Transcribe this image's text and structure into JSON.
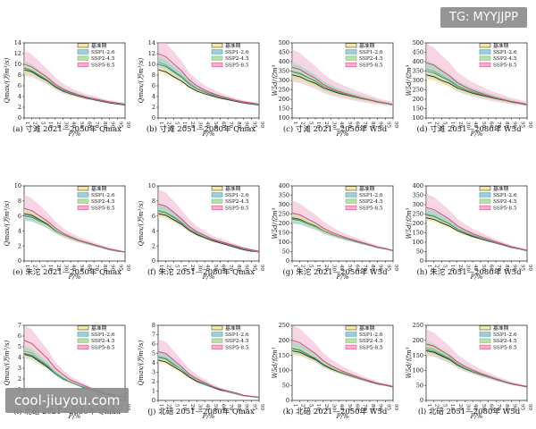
{
  "watermarks": {
    "top_right": "TG: MYYJJPP",
    "bottom_left": "cool-jiuyou.com"
  },
  "legend": [
    "基准期",
    "SSP1-2.6",
    "SSP2-4.5",
    "SSP5-8.5"
  ],
  "colors": {
    "基准期": "#222222",
    "SSP1-2.6": "#2b8a8a",
    "SSP2-4.5": "#6fae6f",
    "SSP5-8.5": "#d83a7a",
    "band_base": "#f4ea9a",
    "band_126": "#9fd0d8",
    "band_245": "#b9e0a8",
    "band_585": "#f3b3cf"
  },
  "x_label": "P/%",
  "x_ticks": [
    "1",
    "2",
    "5",
    "10",
    "20",
    "30",
    "40",
    "50",
    "60",
    "70",
    "80",
    "90",
    "95",
    "99"
  ],
  "chart_data": [
    {
      "type": "area",
      "caption": "(a) 寸滩 2021—2050年 Qmax",
      "ylabel": "Qmax/(万m³/s)",
      "ylim": [
        0,
        14
      ],
      "yticks": [
        0,
        2,
        4,
        6,
        8,
        10,
        12,
        14
      ],
      "series": [
        {
          "name": "基准期",
          "values": [
            9.0,
            8.6,
            7.7,
            6.9,
            5.8,
            5.0,
            4.5,
            4.1,
            3.7,
            3.4,
            3.1,
            2.8,
            2.6,
            2.4
          ]
        },
        {
          "name": "SSP1-2.6",
          "values": [
            9.3,
            8.8,
            7.9,
            7.0,
            5.9,
            5.1,
            4.6,
            4.2,
            3.8,
            3.5,
            3.2,
            2.9,
            2.7,
            2.5
          ]
        },
        {
          "name": "SSP2-4.5",
          "values": [
            9.4,
            8.9,
            8.0,
            7.1,
            6.0,
            5.2,
            4.7,
            4.2,
            3.8,
            3.5,
            3.2,
            2.9,
            2.7,
            2.5
          ]
        },
        {
          "name": "SSP5-8.5",
          "values": [
            10.0,
            9.5,
            8.5,
            7.5,
            6.3,
            5.4,
            4.8,
            4.3,
            3.9,
            3.6,
            3.3,
            3.0,
            2.8,
            2.6
          ]
        }
      ]
    },
    {
      "type": "area",
      "caption": "(b) 寸滩 2051—2080年 Qmax",
      "ylabel": "Qmax/(万m³/s)",
      "ylim": [
        0,
        14
      ],
      "yticks": [
        0,
        2,
        4,
        6,
        8,
        10,
        12,
        14
      ],
      "series": [
        {
          "name": "基准期",
          "values": [
            9.0,
            8.6,
            7.7,
            6.9,
            5.8,
            5.0,
            4.5,
            4.1,
            3.7,
            3.4,
            3.1,
            2.8,
            2.6,
            2.4
          ]
        },
        {
          "name": "SSP1-2.6",
          "values": [
            10.0,
            9.6,
            8.6,
            7.6,
            6.3,
            5.4,
            4.8,
            4.3,
            3.9,
            3.5,
            3.2,
            2.9,
            2.7,
            2.5
          ]
        },
        {
          "name": "SSP2-4.5",
          "values": [
            10.4,
            9.9,
            8.8,
            7.8,
            6.5,
            5.5,
            4.9,
            4.4,
            3.9,
            3.6,
            3.2,
            2.9,
            2.7,
            2.5
          ]
        },
        {
          "name": "SSP5-8.5",
          "values": [
            12.0,
            11.4,
            10.1,
            8.8,
            7.1,
            6.0,
            5.2,
            4.6,
            4.1,
            3.7,
            3.3,
            3.0,
            2.8,
            2.6
          ]
        }
      ]
    },
    {
      "type": "area",
      "caption": "(c) 寸滩 2021—2050年 W5d",
      "ylabel": "W5d/亿m³",
      "ylim": [
        100,
        500
      ],
      "yticks": [
        100,
        150,
        200,
        250,
        300,
        350,
        400,
        450,
        500
      ],
      "series": [
        {
          "name": "基准期",
          "values": [
            330,
            320,
            300,
            285,
            260,
            245,
            232,
            222,
            212,
            203,
            195,
            185,
            178,
            170
          ]
        },
        {
          "name": "SSP1-2.6",
          "values": [
            345,
            335,
            315,
            295,
            268,
            250,
            236,
            225,
            214,
            205,
            196,
            186,
            179,
            171
          ]
        },
        {
          "name": "SSP2-4.5",
          "values": [
            350,
            340,
            318,
            298,
            270,
            252,
            238,
            226,
            215,
            205,
            196,
            186,
            179,
            171
          ]
        },
        {
          "name": "SSP5-8.5",
          "values": [
            370,
            358,
            333,
            310,
            279,
            258,
            243,
            230,
            218,
            207,
            197,
            187,
            180,
            172
          ]
        }
      ]
    },
    {
      "type": "area",
      "caption": "(d) 寸滩 2051—2080年 W5d",
      "ylabel": "W5d/亿m³",
      "ylim": [
        100,
        500
      ],
      "yticks": [
        100,
        150,
        200,
        250,
        300,
        350,
        400,
        450,
        500
      ],
      "series": [
        {
          "name": "基准期",
          "values": [
            330,
            320,
            300,
            285,
            260,
            245,
            232,
            222,
            212,
            203,
            195,
            185,
            178,
            170
          ]
        },
        {
          "name": "SSP1-2.6",
          "values": [
            350,
            340,
            318,
            298,
            270,
            252,
            238,
            226,
            215,
            205,
            196,
            186,
            179,
            171
          ]
        },
        {
          "name": "SSP2-4.5",
          "values": [
            360,
            349,
            326,
            304,
            274,
            255,
            240,
            228,
            216,
            206,
            197,
            187,
            180,
            172
          ]
        },
        {
          "name": "SSP5-8.5",
          "values": [
            395,
            382,
            352,
            325,
            288,
            265,
            247,
            233,
            220,
            208,
            198,
            188,
            181,
            173
          ]
        }
      ]
    },
    {
      "type": "area",
      "caption": "(e) 朱沱 2021—2050年 Qmax",
      "ylabel": "Qmax/(万m³/s)",
      "ylim": [
        0,
        10
      ],
      "yticks": [
        0,
        2,
        4,
        6,
        8,
        10
      ],
      "series": [
        {
          "name": "基准期",
          "values": [
            6.3,
            6.1,
            5.5,
            4.9,
            4.1,
            3.5,
            3.1,
            2.7,
            2.4,
            2.1,
            1.8,
            1.5,
            1.3,
            1.2
          ]
        },
        {
          "name": "SSP1-2.6",
          "values": [
            6.0,
            5.8,
            5.3,
            4.8,
            4.0,
            3.5,
            3.1,
            2.7,
            2.4,
            2.1,
            1.8,
            1.5,
            1.3,
            1.2
          ]
        },
        {
          "name": "SSP2-4.5",
          "values": [
            6.1,
            5.9,
            5.4,
            4.8,
            4.1,
            3.5,
            3.1,
            2.7,
            2.4,
            2.1,
            1.8,
            1.5,
            1.3,
            1.2
          ]
        },
        {
          "name": "SSP5-8.5",
          "values": [
            7.0,
            6.7,
            6.0,
            5.3,
            4.4,
            3.7,
            3.2,
            2.8,
            2.5,
            2.2,
            1.9,
            1.6,
            1.4,
            1.2
          ]
        }
      ]
    },
    {
      "type": "area",
      "caption": "(f) 朱沱 2051—2080年 Qmax",
      "ylabel": "Qmax/(万m³/s)",
      "ylim": [
        0,
        10
      ],
      "yticks": [
        0,
        2,
        4,
        6,
        8,
        10
      ],
      "series": [
        {
          "name": "基准期",
          "values": [
            6.3,
            6.1,
            5.5,
            4.9,
            4.1,
            3.5,
            3.1,
            2.7,
            2.4,
            2.1,
            1.8,
            1.5,
            1.3,
            1.2
          ]
        },
        {
          "name": "SSP1-2.6",
          "values": [
            6.6,
            6.4,
            5.8,
            5.1,
            4.3,
            3.6,
            3.2,
            2.8,
            2.5,
            2.2,
            1.9,
            1.6,
            1.4,
            1.2
          ]
        },
        {
          "name": "SSP2-4.5",
          "values": [
            6.8,
            6.5,
            5.9,
            5.2,
            4.3,
            3.7,
            3.2,
            2.8,
            2.5,
            2.2,
            1.9,
            1.6,
            1.4,
            1.2
          ]
        },
        {
          "name": "SSP5-8.5",
          "values": [
            7.6,
            7.3,
            6.5,
            5.6,
            4.6,
            3.9,
            3.4,
            2.9,
            2.6,
            2.3,
            2.0,
            1.7,
            1.5,
            1.3
          ]
        }
      ]
    },
    {
      "type": "area",
      "caption": "(g) 朱沱 2021—2050年 W5d",
      "ylabel": "W5d/亿m³",
      "ylim": [
        0,
        400
      ],
      "yticks": [
        0,
        50,
        100,
        150,
        200,
        250,
        300,
        350,
        400
      ],
      "series": [
        {
          "name": "基准期",
          "values": [
            230,
            222,
            203,
            186,
            162,
            145,
            130,
            118,
            106,
            95,
            84,
            72,
            64,
            55
          ]
        },
        {
          "name": "SSP1-2.6",
          "values": [
            222,
            215,
            198,
            182,
            160,
            143,
            129,
            117,
            105,
            94,
            83,
            72,
            64,
            55
          ]
        },
        {
          "name": "SSP2-4.5",
          "values": [
            226,
            219,
            201,
            184,
            161,
            144,
            130,
            118,
            106,
            95,
            84,
            72,
            64,
            55
          ]
        },
        {
          "name": "SSP5-8.5",
          "values": [
            255,
            246,
            224,
            203,
            175,
            155,
            138,
            124,
            111,
            99,
            87,
            75,
            66,
            56
          ]
        }
      ]
    },
    {
      "type": "area",
      "caption": "(h) 朱沱 2051—2080年 W5d",
      "ylabel": "W5d/亿m³",
      "ylim": [
        0,
        400
      ],
      "yticks": [
        0,
        50,
        100,
        150,
        200,
        250,
        300,
        350,
        400
      ],
      "series": [
        {
          "name": "基准期",
          "values": [
            230,
            222,
            203,
            186,
            162,
            145,
            130,
            118,
            106,
            95,
            84,
            72,
            64,
            55
          ]
        },
        {
          "name": "SSP1-2.6",
          "values": [
            245,
            237,
            216,
            197,
            170,
            151,
            135,
            122,
            109,
            97,
            86,
            74,
            65,
            56
          ]
        },
        {
          "name": "SSP2-4.5",
          "values": [
            250,
            241,
            220,
            200,
            172,
            153,
            137,
            123,
            110,
            98,
            86,
            74,
            65,
            56
          ]
        },
        {
          "name": "SSP5-8.5",
          "values": [
            285,
            274,
            248,
            222,
            188,
            165,
            146,
            130,
            116,
            102,
            89,
            76,
            67,
            57
          ]
        }
      ]
    },
    {
      "type": "area",
      "caption": "(i) 北碚 2021—2050年 Qmax",
      "ylabel": "Qmax/(万m³/s)",
      "ylim": [
        0,
        7
      ],
      "yticks": [
        0,
        1,
        2,
        3,
        4,
        5,
        6,
        7
      ],
      "series": [
        {
          "name": "基准期",
          "values": [
            4.3,
            4.1,
            3.6,
            3.1,
            2.5,
            2.0,
            1.7,
            1.4,
            1.1,
            0.9,
            0.7,
            0.5,
            0.4,
            0.3
          ]
        },
        {
          "name": "SSP1-2.6",
          "values": [
            4.4,
            4.2,
            3.7,
            3.2,
            2.5,
            2.0,
            1.7,
            1.4,
            1.1,
            0.9,
            0.7,
            0.5,
            0.4,
            0.3
          ]
        },
        {
          "name": "SSP2-4.5",
          "values": [
            4.6,
            4.4,
            3.8,
            3.3,
            2.6,
            2.1,
            1.7,
            1.4,
            1.2,
            0.9,
            0.7,
            0.5,
            0.4,
            0.3
          ]
        },
        {
          "name": "SSP5-8.5",
          "values": [
            5.6,
            5.3,
            4.6,
            3.9,
            3.0,
            2.4,
            1.9,
            1.6,
            1.3,
            1.0,
            0.8,
            0.6,
            0.45,
            0.35
          ]
        }
      ]
    },
    {
      "type": "area",
      "caption": "(j) 北碚 2051—2080年 Qmax",
      "ylabel": "Qmax/(万m³/s)",
      "ylim": [
        0,
        8
      ],
      "yticks": [
        0,
        1,
        2,
        3,
        4,
        5,
        6,
        7,
        8
      ],
      "series": [
        {
          "name": "基准期",
          "values": [
            4.3,
            4.1,
            3.6,
            3.1,
            2.5,
            2.0,
            1.7,
            1.4,
            1.1,
            0.9,
            0.7,
            0.5,
            0.4,
            0.3
          ]
        },
        {
          "name": "SSP1-2.6",
          "values": [
            4.6,
            4.4,
            3.8,
            3.3,
            2.6,
            2.1,
            1.7,
            1.4,
            1.2,
            0.9,
            0.7,
            0.5,
            0.4,
            0.3
          ]
        },
        {
          "name": "SSP2-4.5",
          "values": [
            4.7,
            4.5,
            3.9,
            3.3,
            2.6,
            2.1,
            1.8,
            1.5,
            1.2,
            0.9,
            0.7,
            0.5,
            0.4,
            0.3
          ]
        },
        {
          "name": "SSP5-8.5",
          "values": [
            5.2,
            5.0,
            4.3,
            3.6,
            2.8,
            2.3,
            1.9,
            1.5,
            1.2,
            1.0,
            0.8,
            0.55,
            0.45,
            0.35
          ]
        }
      ]
    },
    {
      "type": "area",
      "caption": "(k) 北碚 2021—2050年 W5d",
      "ylabel": "W5d/亿m³",
      "ylim": [
        0,
        250
      ],
      "yticks": [
        0,
        50,
        100,
        150,
        200,
        250
      ],
      "series": [
        {
          "name": "基准期",
          "values": [
            165,
            160,
            148,
            136,
            118,
            105,
            95,
            86,
            78,
            70,
            62,
            55,
            50,
            45
          ]
        },
        {
          "name": "SSP1-2.6",
          "values": [
            172,
            166,
            152,
            139,
            120,
            107,
            96,
            87,
            79,
            71,
            63,
            56,
            51,
            46
          ]
        },
        {
          "name": "SSP2-4.5",
          "values": [
            175,
            169,
            155,
            141,
            122,
            108,
            97,
            88,
            79,
            71,
            63,
            56,
            51,
            46
          ]
        },
        {
          "name": "SSP5-8.5",
          "values": [
            200,
            192,
            174,
            156,
            132,
            116,
            103,
            92,
            82,
            73,
            65,
            57,
            52,
            46
          ]
        }
      ]
    },
    {
      "type": "area",
      "caption": "(l) 北碚 2051—2080年 W5d",
      "ylabel": "W5d/亿m³",
      "ylim": [
        0,
        250
      ],
      "yticks": [
        0,
        50,
        100,
        150,
        200,
        250
      ],
      "series": [
        {
          "name": "基准期",
          "values": [
            165,
            160,
            148,
            136,
            118,
            105,
            95,
            86,
            78,
            70,
            62,
            55,
            50,
            45
          ]
        },
        {
          "name": "SSP1-2.6",
          "values": [
            170,
            164,
            151,
            138,
            120,
            106,
            96,
            87,
            78,
            70,
            62,
            55,
            50,
            45
          ]
        },
        {
          "name": "SSP2-4.5",
          "values": [
            176,
            170,
            155,
            142,
            122,
            108,
            97,
            88,
            79,
            71,
            63,
            56,
            51,
            46
          ]
        },
        {
          "name": "SSP5-8.5",
          "values": [
            188,
            181,
            165,
            149,
            128,
            113,
            101,
            90,
            81,
            72,
            64,
            56,
            51,
            46
          ]
        }
      ]
    }
  ]
}
